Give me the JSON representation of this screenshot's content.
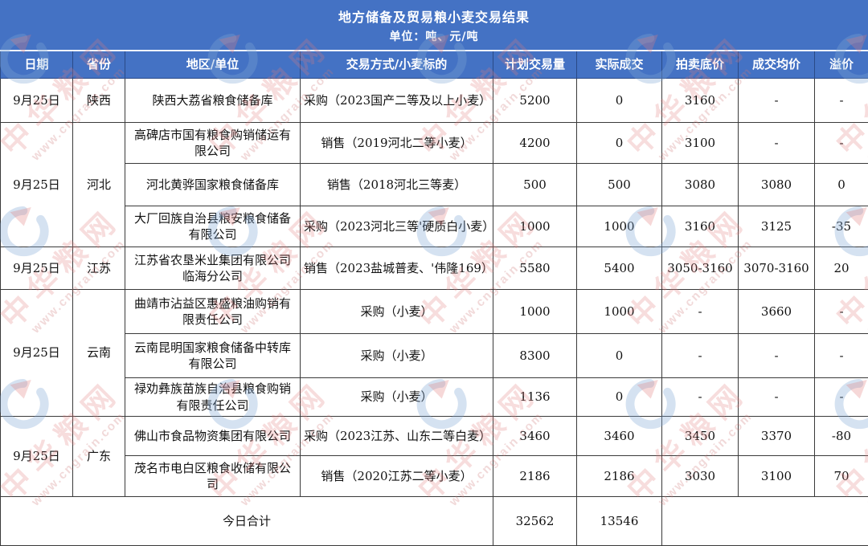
{
  "title": "地方储备及贸易粮小麦交易结果",
  "subtitle": "单位：吨、元/吨",
  "columns": [
    "日期",
    "省份",
    "地区/单位",
    "交易方式/小麦标的",
    "计划交易量",
    "实际成交",
    "拍卖底价",
    "成交均价",
    "溢价"
  ],
  "groups": [
    {
      "date": "9月25日",
      "province": "陕西",
      "rows": [
        {
          "unit": "陕西大荔省粮食储备库",
          "deal": "采购（2023国产二等及以上小麦）",
          "planned": "5200",
          "actual": "0",
          "floor": "3160",
          "avg": "-",
          "premium": "-"
        }
      ]
    },
    {
      "date": "9月25日",
      "province": "河北",
      "rows": [
        {
          "unit": "高碑店市国有粮食购销储运有限公司",
          "deal": "销售（2019河北二等小麦）",
          "planned": "4200",
          "actual": "0",
          "floor": "3100",
          "avg": "-",
          "premium": "-"
        },
        {
          "unit": "河北黄骅国家粮食储备库",
          "deal": "销售（2018河北三等麦）",
          "planned": "500",
          "actual": "500",
          "floor": "3080",
          "avg": "3080",
          "premium": "0"
        },
        {
          "unit": "大厂回族自治县粮安粮食储备有限公司",
          "deal": "采购（2023河北三等'硬质白小麦）",
          "planned": "1000",
          "actual": "1000",
          "floor": "3160",
          "avg": "3125",
          "premium": "-35"
        }
      ]
    },
    {
      "date": "9月25日",
      "province": "江苏",
      "rows": [
        {
          "unit": "江苏省农垦米业集团有限公司临海分公司",
          "deal": "销售（2023盐城普麦、'伟隆169）",
          "planned": "5580",
          "actual": "5400",
          "floor": "3050-3160",
          "avg": "3070-3160",
          "premium": "20"
        }
      ]
    },
    {
      "date": "9月25日",
      "province": "云南",
      "rows": [
        {
          "unit": "曲靖市沾益区惠盛粮油购销有限责任公司",
          "deal": "采购（小麦）",
          "planned": "1000",
          "actual": "1000",
          "floor": "-",
          "avg": "3660",
          "premium": "-"
        },
        {
          "unit": "云南昆明国家粮食储备中转库有限公司",
          "deal": "采购（小麦）",
          "planned": "8300",
          "actual": "0",
          "floor": "-",
          "avg": "-",
          "premium": "-"
        },
        {
          "unit": "禄劝彝族苗族自治县粮食购销有限责任公司",
          "deal": "采购（小麦）",
          "planned": "1136",
          "actual": "0",
          "floor": "-",
          "avg": "-",
          "premium": "-"
        }
      ]
    },
    {
      "date": "9月25日",
      "province": "广东",
      "rows": [
        {
          "unit": "佛山市食品物资集团有限公司",
          "deal": "采购（2023江苏、山东二等白麦）",
          "planned": "3460",
          "actual": "3460",
          "floor": "3450",
          "avg": "3370",
          "premium": "-80"
        },
        {
          "unit": "茂名市电白区粮食收储有限公司",
          "deal": "销售（2020江苏二等小麦）",
          "planned": "2186",
          "actual": "2186",
          "floor": "3030",
          "avg": "3100",
          "premium": "70"
        }
      ]
    }
  ],
  "total": {
    "label": "今日合计",
    "planned": "32562",
    "actual": "13546"
  },
  "watermark": {
    "brand": "中华粮网",
    "url_text": "www.cngrain.com"
  },
  "colors": {
    "header_bg": "#4472C4",
    "header_text": "#FFFFFF",
    "border": "#3A3A3A",
    "watermark_red": "#E07D7D",
    "watermark_blue": "#7FA8D4"
  },
  "chart_data": {
    "type": "table",
    "title": "地方储备及贸易粮小麦交易结果",
    "unit_note": "单位：吨、元/吨",
    "columns": [
      "日期",
      "省份",
      "地区/单位",
      "交易方式/小麦标的",
      "计划交易量",
      "实际成交",
      "拍卖底价",
      "成交均价",
      "溢价"
    ],
    "rows": [
      [
        "9月25日",
        "陕西",
        "陕西大荔省粮食储备库",
        "采购（2023国产二等及以上小麦）",
        "5200",
        "0",
        "3160",
        "-",
        "-"
      ],
      [
        "9月25日",
        "河北",
        "高碑店市国有粮食购销储运有限公司",
        "销售（2019河北二等小麦）",
        "4200",
        "0",
        "3100",
        "-",
        "-"
      ],
      [
        "9月25日",
        "河北",
        "河北黄骅国家粮食储备库",
        "销售（2018河北三等麦）",
        "500",
        "500",
        "3080",
        "3080",
        "0"
      ],
      [
        "9月25日",
        "河北",
        "大厂回族自治县粮安粮食储备有限公司",
        "采购（2023河北三等'硬质白小麦）",
        "1000",
        "1000",
        "3160",
        "3125",
        "-35"
      ],
      [
        "9月25日",
        "江苏",
        "江苏省农垦米业集团有限公司临海分公司",
        "销售（2023盐城普麦、'伟隆169）",
        "5580",
        "5400",
        "3050-3160",
        "3070-3160",
        "20"
      ],
      [
        "9月25日",
        "云南",
        "曲靖市沾益区惠盛粮油购销有限责任公司",
        "采购（小麦）",
        "1000",
        "1000",
        "-",
        "3660",
        "-"
      ],
      [
        "9月25日",
        "云南",
        "云南昆明国家粮食储备中转库有限公司",
        "采购（小麦）",
        "8300",
        "0",
        "-",
        "-",
        "-"
      ],
      [
        "9月25日",
        "云南",
        "禄劝彝族苗族自治县粮食购销有限责任公司",
        "采购（小麦）",
        "1136",
        "0",
        "-",
        "-",
        "-"
      ],
      [
        "9月25日",
        "广东",
        "佛山市食品物资集团有限公司",
        "采购（2023江苏、山东二等白麦）",
        "3460",
        "3460",
        "3450",
        "3370",
        "-80"
      ],
      [
        "9月25日",
        "广东",
        "茂名市电白区粮食收储有限公司",
        "销售（2020江苏二等小麦）",
        "2186",
        "2186",
        "3030",
        "3100",
        "70"
      ],
      [
        "今日合计",
        "",
        "",
        "",
        "32562",
        "13546",
        "",
        "",
        ""
      ]
    ]
  }
}
